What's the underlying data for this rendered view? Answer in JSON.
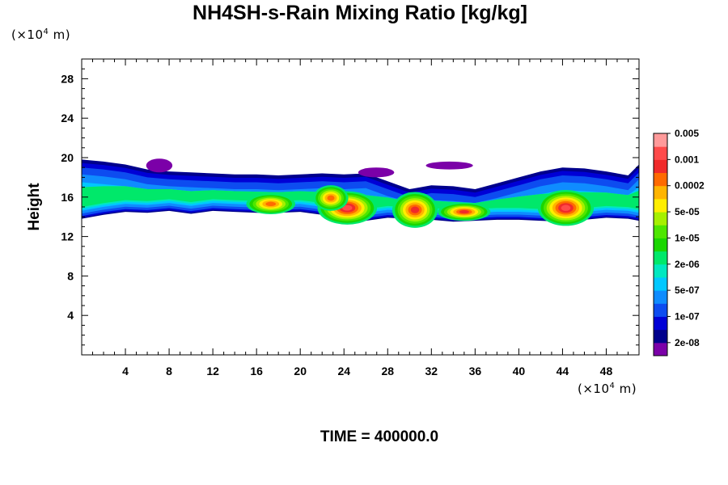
{
  "chart_data": {
    "type": "heatmap",
    "title": "NH4SH-s-Rain Mixing Ratio [kg/kg]",
    "xlabel": "",
    "ylabel": "Height",
    "x_unit": "(×10",
    "x_unit_exp": "4",
    "x_unit_tail": " m)",
    "y_unit": "(×10",
    "y_unit_exp": "4",
    "y_unit_tail": " m)",
    "xlim": [
      0,
      51
    ],
    "ylim": [
      0,
      30
    ],
    "x_ticks": [
      4,
      8,
      12,
      16,
      20,
      24,
      28,
      32,
      36,
      40,
      44,
      48
    ],
    "y_ticks": [
      4,
      8,
      12,
      16,
      20,
      24,
      28
    ],
    "footer": "TIME = 400000.0",
    "colorbar": {
      "colors": [
        "#7b00a8",
        "#00008c",
        "#0000d6",
        "#0d4cf0",
        "#0f8cff",
        "#00c8ff",
        "#00e8c0",
        "#00e86a",
        "#1ad600",
        "#4ee600",
        "#a6f000",
        "#ffee00",
        "#ffb400",
        "#ff6a00",
        "#f02a2a",
        "#ff4a4a",
        "#ff9a9a"
      ],
      "labels": [
        "2e-08",
        "1e-07",
        "5e-07",
        "2e-06",
        "1e-05",
        "5e-05",
        "0.0002",
        "0.001",
        "0.005"
      ]
    },
    "band": {
      "x": [
        0.0,
        2.0,
        4.0,
        6.0,
        8.0,
        10.0,
        12.0,
        14.0,
        16.0,
        18.0,
        20.0,
        22.0,
        24.0,
        26.0,
        28.0,
        30.0,
        32.0,
        34.0,
        36.0,
        38.0,
        40.0,
        42.0,
        44.0,
        46.0,
        48.0,
        50.0,
        51.0
      ],
      "bottom": [
        13.8,
        14.2,
        14.5,
        14.4,
        14.6,
        14.3,
        14.6,
        14.5,
        14.4,
        14.4,
        14.5,
        14.2,
        13.5,
        13.6,
        13.9,
        13.8,
        13.7,
        13.5,
        13.6,
        13.7,
        13.7,
        13.6,
        13.5,
        13.7,
        13.9,
        13.8,
        13.6
      ],
      "top": [
        19.8,
        19.6,
        19.3,
        18.8,
        18.6,
        18.5,
        18.4,
        18.3,
        18.3,
        18.2,
        18.3,
        18.4,
        18.3,
        18.4,
        17.6,
        16.8,
        17.2,
        17.1,
        16.8,
        17.4,
        18.0,
        18.6,
        19.0,
        18.9,
        18.6,
        18.2,
        19.3
      ]
    },
    "purple_patches": [
      {
        "x": [
          5.9,
          8.3
        ],
        "y": [
          18.5,
          19.9
        ]
      },
      {
        "x": [
          25.3,
          28.6
        ],
        "y": [
          18.0,
          19.0
        ]
      },
      {
        "x": [
          31.5,
          35.8
        ],
        "y": [
          18.8,
          19.6
        ]
      }
    ],
    "hotspots": [
      {
        "x": 24.3,
        "y": 14.9,
        "level": 15,
        "w": 1.7,
        "h": 1.3
      },
      {
        "x": 30.5,
        "y": 14.7,
        "level": 14,
        "w": 1.3,
        "h": 1.4
      },
      {
        "x": 35.0,
        "y": 14.5,
        "level": 14,
        "w": 1.5,
        "h": 0.7
      },
      {
        "x": 44.3,
        "y": 14.9,
        "level": 15,
        "w": 1.6,
        "h": 1.4
      },
      {
        "x": 17.3,
        "y": 15.3,
        "level": 13,
        "w": 1.4,
        "h": 0.8
      },
      {
        "x": 22.8,
        "y": 15.9,
        "level": 13,
        "w": 1.0,
        "h": 1.0
      }
    ]
  }
}
